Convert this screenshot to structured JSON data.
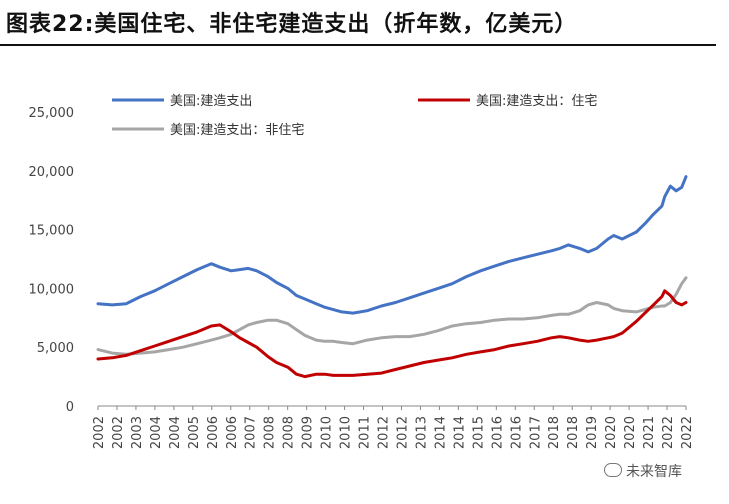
{
  "title": "图表22:美国住宅、非住宅建造支出（折年数，亿美元）",
  "watermark": "未来智库",
  "chart_data": {
    "type": "line",
    "ylim": [
      0,
      25000
    ],
    "yticks": [
      0,
      5000,
      10000,
      15000,
      20000,
      25000
    ],
    "ytick_labels": [
      "0",
      "5,000",
      "10,000",
      "15,000",
      "20,000",
      "25,000"
    ],
    "xlim": [
      2002.0,
      2022.75
    ],
    "xtick_labels": [
      "2002",
      "2002",
      "2003",
      "2004",
      "2004",
      "2005",
      "2006",
      "2006",
      "2007",
      "2008",
      "2008",
      "2009",
      "2010",
      "2010",
      "2011",
      "2012",
      "2012",
      "2013",
      "2014",
      "2014",
      "2015",
      "2016",
      "2016",
      "2017",
      "2018",
      "2018",
      "2019",
      "2020",
      "2020",
      "2021",
      "2022",
      "2022"
    ],
    "legend": "top",
    "series": [
      {
        "name": "美国:建造支出",
        "color": "#4472C4",
        "x": [
          2002.0,
          2002.5,
          2003.0,
          2003.5,
          2004.0,
          2004.5,
          2005.0,
          2005.5,
          2006.0,
          2006.3,
          2006.7,
          2007.0,
          2007.3,
          2007.6,
          2008.0,
          2008.3,
          2008.7,
          2009.0,
          2009.3,
          2009.7,
          2010.0,
          2010.3,
          2010.6,
          2011.0,
          2011.5,
          2012.0,
          2012.5,
          2013.0,
          2013.5,
          2014.0,
          2014.5,
          2015.0,
          2015.5,
          2016.0,
          2016.5,
          2017.0,
          2017.5,
          2018.0,
          2018.3,
          2018.6,
          2019.0,
          2019.3,
          2019.6,
          2020.0,
          2020.2,
          2020.5,
          2021.0,
          2021.3,
          2021.6,
          2021.9,
          2022.0,
          2022.2,
          2022.4,
          2022.6,
          2022.75
        ],
        "values": [
          8700,
          8600,
          8700,
          9300,
          9800,
          10400,
          11000,
          11600,
          12100,
          11800,
          11500,
          11600,
          11700,
          11500,
          11000,
          10500,
          10000,
          9400,
          9100,
          8700,
          8400,
          8200,
          8000,
          7900,
          8100,
          8500,
          8800,
          9200,
          9600,
          10000,
          10400,
          11000,
          11500,
          11900,
          12300,
          12600,
          12900,
          13200,
          13400,
          13700,
          13400,
          13100,
          13400,
          14200,
          14500,
          14200,
          14800,
          15500,
          16300,
          17000,
          17800,
          18700,
          18300,
          18600,
          19500
        ]
      },
      {
        "name": "美国:建造支出：住宅",
        "color": "#C00000",
        "x": [
          2002.0,
          2002.5,
          2003.0,
          2003.5,
          2004.0,
          2004.5,
          2005.0,
          2005.5,
          2006.0,
          2006.3,
          2006.7,
          2007.0,
          2007.3,
          2007.6,
          2008.0,
          2008.3,
          2008.7,
          2009.0,
          2009.3,
          2009.7,
          2010.0,
          2010.3,
          2010.6,
          2011.0,
          2011.5,
          2012.0,
          2012.5,
          2013.0,
          2013.5,
          2014.0,
          2014.5,
          2015.0,
          2015.5,
          2016.0,
          2016.5,
          2017.0,
          2017.5,
          2018.0,
          2018.3,
          2018.6,
          2019.0,
          2019.3,
          2019.6,
          2020.0,
          2020.2,
          2020.5,
          2021.0,
          2021.3,
          2021.6,
          2021.9,
          2022.0,
          2022.2,
          2022.4,
          2022.6,
          2022.75
        ],
        "values": [
          4000,
          4100,
          4300,
          4700,
          5100,
          5500,
          5900,
          6300,
          6800,
          6900,
          6300,
          5800,
          5400,
          5000,
          4200,
          3700,
          3300,
          2700,
          2500,
          2700,
          2700,
          2600,
          2600,
          2600,
          2700,
          2800,
          3100,
          3400,
          3700,
          3900,
          4100,
          4400,
          4600,
          4800,
          5100,
          5300,
          5500,
          5800,
          5900,
          5800,
          5600,
          5500,
          5600,
          5800,
          5900,
          6200,
          7200,
          7900,
          8600,
          9300,
          9800,
          9400,
          8800,
          8600,
          8800
        ]
      },
      {
        "name": "美国:建造支出：非住宅",
        "color": "#A6A6A6",
        "x": [
          2002.0,
          2002.5,
          2003.0,
          2003.5,
          2004.0,
          2004.5,
          2005.0,
          2005.5,
          2006.0,
          2006.3,
          2006.7,
          2007.0,
          2007.3,
          2007.6,
          2008.0,
          2008.3,
          2008.7,
          2009.0,
          2009.3,
          2009.7,
          2010.0,
          2010.3,
          2010.6,
          2011.0,
          2011.5,
          2012.0,
          2012.5,
          2013.0,
          2013.5,
          2014.0,
          2014.5,
          2015.0,
          2015.5,
          2016.0,
          2016.5,
          2017.0,
          2017.5,
          2018.0,
          2018.3,
          2018.6,
          2019.0,
          2019.3,
          2019.6,
          2020.0,
          2020.2,
          2020.5,
          2021.0,
          2021.3,
          2021.6,
          2021.9,
          2022.0,
          2022.2,
          2022.4,
          2022.6,
          2022.75
        ],
        "values": [
          4800,
          4500,
          4400,
          4500,
          4600,
          4800,
          5000,
          5300,
          5600,
          5800,
          6100,
          6500,
          6900,
          7100,
          7300,
          7300,
          7000,
          6500,
          6000,
          5600,
          5500,
          5500,
          5400,
          5300,
          5600,
          5800,
          5900,
          5900,
          6100,
          6400,
          6800,
          7000,
          7100,
          7300,
          7400,
          7400,
          7500,
          7700,
          7800,
          7800,
          8100,
          8600,
          8800,
          8600,
          8300,
          8100,
          8000,
          8200,
          8400,
          8500,
          8500,
          8800,
          9500,
          10400,
          10900
        ]
      }
    ]
  }
}
